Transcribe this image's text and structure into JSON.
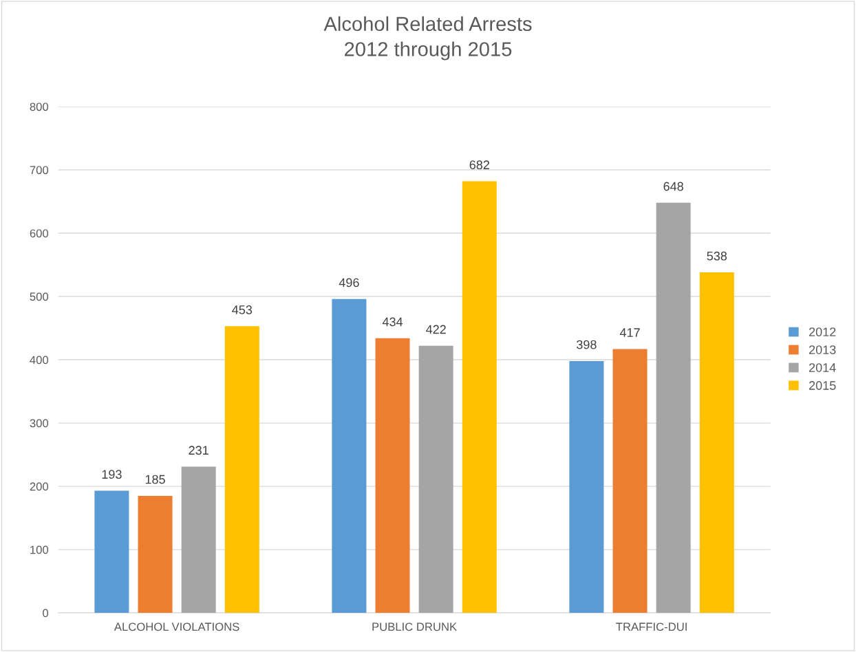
{
  "chart_data": {
    "type": "bar",
    "title": "Alcohol Related Arrests\n2012 through 2015",
    "categories": [
      "ALCOHOL VIOLATIONS",
      "PUBLIC DRUNK",
      "TRAFFIC-DUI"
    ],
    "series": [
      {
        "name": "2012",
        "color": "#5b9bd5",
        "values": [
          193,
          496,
          398
        ]
      },
      {
        "name": "2013",
        "color": "#ed7d31",
        "values": [
          185,
          434,
          417
        ]
      },
      {
        "name": "2014",
        "color": "#a5a5a5",
        "values": [
          231,
          422,
          648
        ]
      },
      {
        "name": "2015",
        "color": "#ffc000",
        "values": [
          453,
          682,
          538
        ]
      }
    ],
    "ylim": [
      0,
      800
    ],
    "yticks": [
      0,
      100,
      200,
      300,
      400,
      500,
      600,
      700,
      800
    ],
    "grid": "y",
    "legend": "right",
    "data_labels": true
  }
}
